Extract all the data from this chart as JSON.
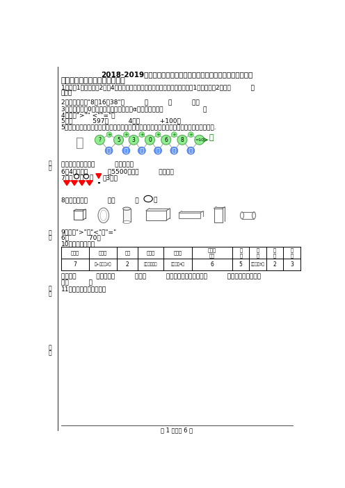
{
  "title": "2018-2019年嘉兴南湖国际实验学校一年级上册数学模拟月考无答案",
  "section1": "一、想一想，填一填（填空题）",
  "bg_color": "#ffffff",
  "footer": "第 1 页，共 6 页"
}
